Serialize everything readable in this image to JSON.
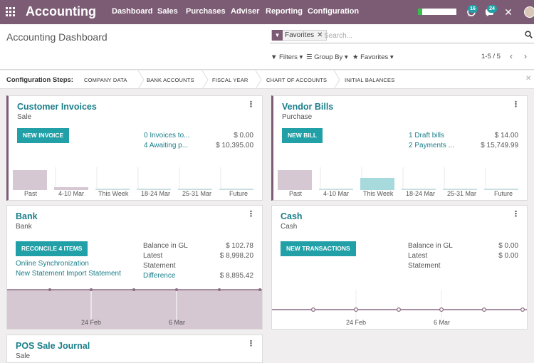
{
  "topbar": {
    "brand": "Accounting",
    "menu": [
      "Dashboard",
      "Sales",
      "Purchases",
      "Adviser",
      "Reporting",
      "Configuration"
    ],
    "messages_count": "16",
    "activities_count": "24",
    "battery_level": 0.12,
    "brand_color": "#7c5b74",
    "accent_color": "#21a0a7"
  },
  "control": {
    "title": "Accounting Dashboard",
    "facet_label": "Favorites",
    "search_placeholder": "Search...",
    "filters_label": "Filters",
    "groupby_label": "Group By",
    "favorites_label": "Favorites",
    "pager": "1-5 / 5"
  },
  "steps": {
    "label": "Configuration Steps:",
    "items": [
      "COMPANY DATA",
      "BANK ACCOUNTS",
      "FISCAL YEAR",
      "CHART OF ACCOUNTS",
      "INITIAL BALANCES"
    ]
  },
  "cards": {
    "customer_invoices": {
      "title": "Customer Invoices",
      "subtitle": "Sale",
      "button": "NEW INVOICE",
      "line1_label": "0 Invoices to...",
      "line1_amount": "$ 0.00",
      "line2_label": "4 Awaiting p...",
      "line2_amount": "$ 10,395.00",
      "bars": [
        "Past",
        "4-10 Mar",
        "This Week",
        "18-24 Mar",
        "25-31 Mar",
        "Future"
      ]
    },
    "vendor_bills": {
      "title": "Vendor Bills",
      "subtitle": "Purchase",
      "button": "NEW BILL",
      "line1_label": "1 Draft bills",
      "line1_amount": "$ 14.00",
      "line2_label": "2 Payments ...",
      "line2_amount": "$ 15,749.99",
      "bars": [
        "Past",
        "4-10 Mar",
        "This Week",
        "18-24 Mar",
        "25-31 Mar",
        "Future"
      ]
    },
    "bank": {
      "title": "Bank",
      "subtitle": "Bank",
      "button": "RECONCILE 4 ITEMS",
      "link1": "Online Synchronization",
      "link2": "New Statement Import Statement",
      "balance_gl_label": "Balance in GL",
      "balance_gl_amount": "$ 102.78",
      "latest_label": "Latest",
      "latest_label2": "Statement",
      "latest_amount": "$ 8,998.20",
      "difference_label": "Difference",
      "difference_amount": "$ 8,895.42",
      "xlabels": [
        "24 Feb",
        "6 Mar"
      ]
    },
    "cash": {
      "title": "Cash",
      "subtitle": "Cash",
      "button": "NEW TRANSACTIONS",
      "balance_gl_label": "Balance in GL",
      "balance_gl_amount": "$ 0.00",
      "latest_label": "Latest",
      "latest_label2": "Statement",
      "latest_amount": "$ 0.00",
      "xlabels": [
        "24 Feb",
        "6 Mar"
      ]
    },
    "pos": {
      "title": "POS Sale Journal",
      "subtitle": "Sale"
    }
  }
}
